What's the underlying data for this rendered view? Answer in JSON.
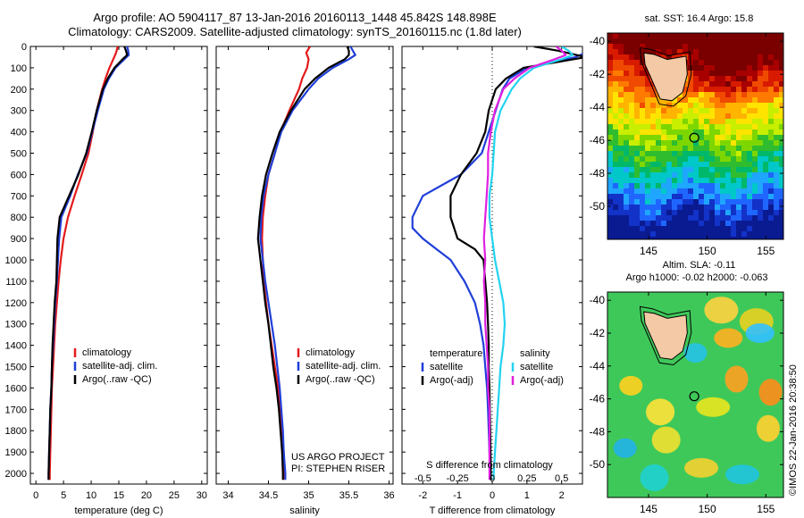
{
  "header": {
    "title_line1": "Argo profile: AO 5904117_87 13-Jan-2016 20160113_1448 45.842S 148.898E",
    "title_line2": "Climatology: CARS2009. Satellite-adjusted climatology: synTS_20160115.nc (1.8d later)"
  },
  "credits": {
    "line1": "US ARGO PROJECT",
    "line2": "PI: STEPHEN RISER",
    "stamp": "©IMOS 22-Jan-2016 20:38:50"
  },
  "maps": {
    "sst": {
      "title": "sat. SST: 16.4 Argo: 15.8",
      "sst_value": 16.4,
      "argo_value": 15.8
    },
    "sla": {
      "title_line1": "Altim. SLA: -0.11",
      "title_line2": "Argo h1000: -0.02 h2000: -0.063",
      "sla_value": -0.11,
      "h1000": -0.02,
      "h2000": -0.063
    },
    "x_ticks": [
      145,
      150,
      155
    ],
    "y_ticks": [
      -40,
      -42,
      -44,
      -46,
      -48,
      -50
    ],
    "xlim": [
      141.5,
      156.5
    ],
    "ylim": [
      -52,
      -39.5
    ],
    "float_position": {
      "lon": 148.898,
      "lat": -45.842
    }
  },
  "colors": {
    "climatology": "#e41a1c",
    "satellite": "#1f3fd8",
    "argo": "#000000",
    "salinity_satellite": "#22d3f0",
    "salinity_argo": "#e020e0",
    "land": "#f3c9a6"
  },
  "chart_data": [
    {
      "type": "line",
      "name": "temperature",
      "xlabel": "temperature (deg C)",
      "ylabel": "",
      "xlim": [
        -1,
        31
      ],
      "ylim": [
        2050,
        0
      ],
      "x_ticks": [
        0,
        5,
        10,
        15,
        20,
        25,
        30
      ],
      "y_ticks": [
        0,
        100,
        200,
        300,
        400,
        500,
        600,
        700,
        800,
        900,
        1000,
        1100,
        1200,
        1300,
        1400,
        1500,
        1600,
        1700,
        1800,
        1900,
        2000
      ],
      "legend": [
        "climatology",
        "satellite-adj. clim.",
        "Argo(..raw -QC)"
      ],
      "legend_position": "lower-right",
      "series": [
        {
          "name": "climatology",
          "depth": [
            0,
            30,
            60,
            100,
            150,
            200,
            300,
            400,
            500,
            600,
            700,
            800,
            900,
            1000,
            1100,
            1200,
            1300,
            1400,
            1500,
            1600,
            1700,
            1800,
            1900,
            2000,
            2030
          ],
          "values": [
            14.8,
            14.5,
            14.0,
            13.3,
            12.6,
            12.0,
            11.0,
            10.3,
            9.5,
            8.3,
            7.0,
            5.8,
            5.0,
            4.5,
            4.1,
            3.8,
            3.5,
            3.3,
            3.1,
            2.9,
            2.8,
            2.7,
            2.6,
            2.5,
            2.5
          ]
        },
        {
          "name": "satellite-adj. clim.",
          "depth": [
            0,
            20,
            40,
            60,
            100,
            150,
            200,
            300,
            400,
            500,
            600,
            700,
            800,
            900,
            1000,
            1100,
            1200,
            1300,
            1400,
            1500,
            1600,
            1700,
            1800,
            1900,
            2000,
            2030
          ],
          "values": [
            16.5,
            16.7,
            16.8,
            16.0,
            14.4,
            13.2,
            12.3,
            11.2,
            10.2,
            9.2,
            7.6,
            6.2,
            4.6,
            4.2,
            4.0,
            3.8,
            3.5,
            3.3,
            3.1,
            2.9,
            2.8,
            2.6,
            2.5,
            2.4,
            2.3,
            2.3
          ]
        },
        {
          "name": "Argo(..raw -QC)",
          "depth": [
            0,
            20,
            40,
            60,
            100,
            150,
            200,
            300,
            400,
            500,
            600,
            700,
            800,
            900,
            1000,
            1100,
            1200,
            1300,
            1400,
            1500,
            1600,
            1700,
            1800,
            1900,
            2000,
            2030
          ],
          "values": [
            16.0,
            16.3,
            16.5,
            15.7,
            14.2,
            13.0,
            12.1,
            11.0,
            10.1,
            9.1,
            7.7,
            6.0,
            4.3,
            3.9,
            3.8,
            3.7,
            3.4,
            3.2,
            3.0,
            2.9,
            2.8,
            2.6,
            2.5,
            2.4,
            2.3,
            2.3
          ]
        }
      ]
    },
    {
      "type": "line",
      "name": "salinity",
      "xlabel": "salinity",
      "ylabel": "",
      "xlim": [
        33.85,
        36.05
      ],
      "ylim": [
        2050,
        0
      ],
      "x_ticks": [
        34,
        34.5,
        35,
        35.5,
        36
      ],
      "legend": [
        "climatology",
        "satellite-adj. clim.",
        "Argo(..raw -QC)"
      ],
      "legend_position": "lower-right",
      "series": [
        {
          "name": "climatology",
          "depth": [
            0,
            10,
            30,
            60,
            100,
            150,
            200,
            300,
            400,
            500,
            600,
            700,
            800,
            900,
            1000,
            1100,
            1200,
            1300,
            1400,
            1500,
            1600,
            1700,
            1800,
            1900,
            2000,
            2030
          ],
          "values": [
            35.02,
            35.0,
            34.97,
            35.0,
            34.98,
            34.92,
            34.88,
            34.76,
            34.65,
            34.58,
            34.5,
            34.46,
            34.43,
            34.42,
            34.43,
            34.44,
            34.47,
            34.5,
            34.54,
            34.58,
            34.62,
            34.65,
            34.67,
            34.69,
            34.7,
            34.7
          ]
        },
        {
          "name": "satellite-adj. clim.",
          "depth": [
            0,
            20,
            40,
            60,
            100,
            150,
            200,
            300,
            400,
            500,
            600,
            700,
            800,
            900,
            1000,
            1100,
            1200,
            1300,
            1400,
            1500,
            1600,
            1700,
            1800,
            1900,
            2000,
            2030
          ],
          "values": [
            35.52,
            35.55,
            35.58,
            35.5,
            35.3,
            35.12,
            35.0,
            34.8,
            34.66,
            34.58,
            34.5,
            34.44,
            34.41,
            34.4,
            34.43,
            34.46,
            34.5,
            34.54,
            34.58,
            34.61,
            34.64,
            34.66,
            34.68,
            34.69,
            34.71,
            34.71
          ]
        },
        {
          "name": "Argo(..raw -QC)",
          "depth": [
            0,
            20,
            40,
            60,
            100,
            150,
            200,
            300,
            400,
            500,
            600,
            700,
            800,
            900,
            1000,
            1100,
            1200,
            1300,
            1400,
            1500,
            1600,
            1700,
            1800,
            1900,
            2000,
            2030
          ],
          "values": [
            35.48,
            35.5,
            35.5,
            35.45,
            35.25,
            35.08,
            34.95,
            34.78,
            34.64,
            34.55,
            34.47,
            34.42,
            34.39,
            34.37,
            34.4,
            34.43,
            34.46,
            34.5,
            34.53,
            34.56,
            34.6,
            34.63,
            34.65,
            34.67,
            34.68,
            34.68
          ]
        }
      ]
    },
    {
      "type": "line",
      "name": "difference from climatology",
      "xlabel": "T difference from climatology",
      "xlabel_top": "S difference from climatology",
      "xlim": [
        -2.6,
        2.6
      ],
      "ylim": [
        2050,
        0
      ],
      "x_ticks": [
        -2,
        -1,
        0,
        1,
        2
      ],
      "x_ticks_top": [
        -0.5,
        -0.25,
        0,
        0.25,
        0.5
      ],
      "x_ticks_top_labels": [
        "-0.5",
        "-0.25",
        "0",
        "0.25",
        "0.5"
      ],
      "legend_temperature": {
        "title": "temperature",
        "items": [
          "satellite",
          "Argo(-adj)"
        ]
      },
      "legend_salinity": {
        "title": "salinity",
        "items": [
          "satellite",
          "Argo(-adj)"
        ]
      },
      "legend_position": "lower-center",
      "series": [
        {
          "name": "temperature satellite",
          "depth": [
            0,
            20,
            50,
            100,
            150,
            200,
            300,
            400,
            500,
            600,
            700,
            800,
            850,
            900,
            950,
            1000,
            1100,
            1200,
            1300,
            1400,
            1500,
            1600,
            1700,
            1800,
            1900,
            2000,
            2030
          ],
          "values": [
            2.6,
            2.8,
            2.4,
            1.0,
            0.5,
            0.3,
            0.1,
            -0.1,
            -0.3,
            -0.9,
            -2.0,
            -2.3,
            -2.3,
            -2.0,
            -1.6,
            -1.2,
            -0.8,
            -0.5,
            -0.35,
            -0.25,
            -0.2,
            -0.15,
            -0.12,
            -0.1,
            -0.08,
            -0.05,
            -0.05
          ]
        },
        {
          "name": "temperature Argo(-adj)",
          "depth": [
            0,
            20,
            50,
            100,
            150,
            200,
            300,
            400,
            500,
            600,
            700,
            800,
            850,
            900,
            950,
            1000,
            1100,
            1200,
            1300,
            1400,
            1500,
            1600,
            1700,
            1800,
            1900,
            2000,
            2030
          ],
          "values": [
            1.2,
            1.9,
            2.7,
            0.9,
            0.4,
            0.1,
            -0.1,
            -0.2,
            -0.45,
            -0.9,
            -1.2,
            -1.2,
            -1.1,
            -1.0,
            -0.5,
            -0.25,
            -0.2,
            -0.15,
            -0.12,
            -0.1,
            -0.1,
            -0.08,
            -0.07,
            -0.06,
            -0.05,
            -0.04,
            -0.04
          ]
        },
        {
          "name": "salinity satellite",
          "depth": [
            0,
            20,
            40,
            60,
            100,
            150,
            200,
            300,
            400,
            500,
            600,
            700,
            800,
            900,
            1000,
            1100,
            1200,
            1300,
            1400,
            1500,
            1600,
            1700,
            1800,
            1900,
            2000,
            2030
          ],
          "values": [
            0.5,
            0.55,
            0.58,
            0.5,
            0.3,
            0.2,
            0.14,
            0.06,
            0.02,
            0.01,
            0.0,
            -0.02,
            -0.02,
            0.0,
            0.02,
            0.05,
            0.08,
            0.09,
            0.08,
            0.06,
            0.05,
            0.04,
            0.03,
            0.02,
            0.01,
            0.01
          ]
        },
        {
          "name": "salinity Argo(-adj)",
          "depth": [
            0,
            20,
            40,
            60,
            100,
            150,
            200,
            300,
            400,
            500,
            600,
            700,
            800,
            900,
            1000,
            1100,
            1200,
            1300,
            1400,
            1500,
            1600,
            1700,
            1800,
            1900,
            2000,
            2030
          ],
          "values": [
            0.46,
            0.5,
            0.53,
            0.45,
            0.27,
            0.16,
            0.08,
            0.02,
            -0.01,
            -0.03,
            -0.03,
            -0.04,
            -0.05,
            -0.06,
            -0.05,
            -0.06,
            -0.05,
            -0.05,
            -0.04,
            -0.03,
            -0.03,
            -0.02,
            -0.02,
            -0.02,
            -0.02,
            -0.02
          ]
        }
      ]
    }
  ]
}
